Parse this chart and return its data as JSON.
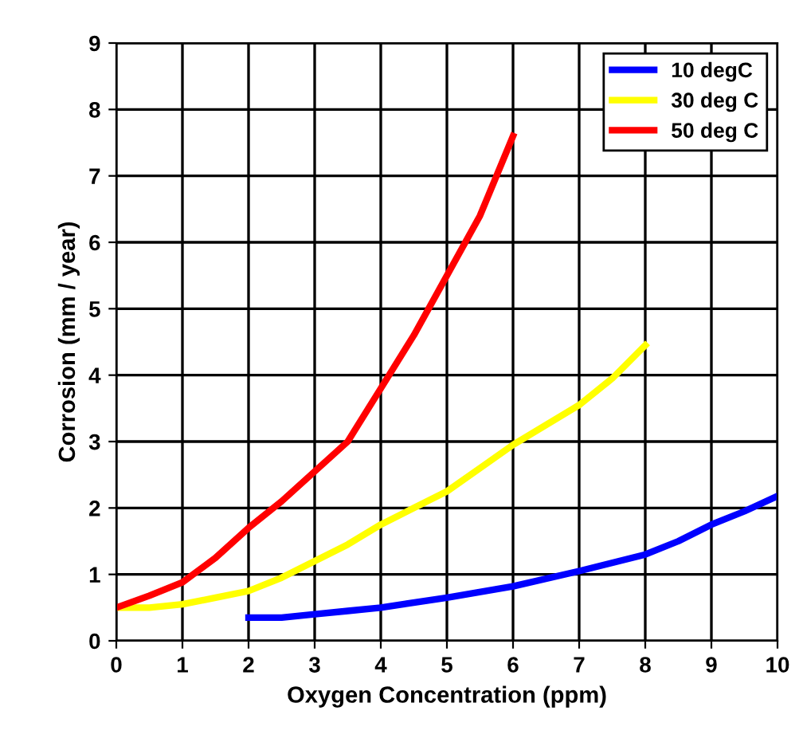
{
  "chart_data": {
    "type": "line",
    "xlabel": "Oxygen Concentration (ppm)",
    "ylabel": "Corrosion (mm / year)",
    "xlim": [
      0,
      10
    ],
    "ylim": [
      0,
      9
    ],
    "xticks": [
      0,
      1,
      2,
      3,
      4,
      5,
      6,
      7,
      8,
      9,
      10
    ],
    "yticks": [
      0,
      1,
      2,
      3,
      4,
      5,
      6,
      7,
      8,
      9
    ],
    "grid": true,
    "legend": "top right",
    "marker": "none",
    "line_style": "solid",
    "series": [
      {
        "name": "10 degC",
        "color": "#0000ff",
        "x": [
          2,
          2.5,
          3,
          3.5,
          4,
          5,
          6,
          7,
          8,
          8.5,
          9,
          9.5,
          10
        ],
        "values": [
          0.35,
          0.35,
          0.4,
          0.45,
          0.5,
          0.65,
          0.82,
          1.05,
          1.3,
          1.5,
          1.75,
          1.95,
          2.18
        ]
      },
      {
        "name": "30 deg C",
        "color": "#ffff00",
        "x": [
          0,
          0.5,
          1,
          1.5,
          2,
          2.5,
          3,
          3.5,
          4,
          4.5,
          5,
          5.5,
          6,
          6.5,
          7,
          7.5,
          8
        ],
        "values": [
          0.5,
          0.5,
          0.55,
          0.65,
          0.75,
          0.95,
          1.2,
          1.45,
          1.75,
          2.0,
          2.25,
          2.6,
          2.95,
          3.25,
          3.55,
          3.95,
          4.45
        ]
      },
      {
        "name": "50 deg C",
        "color": "#ff0000",
        "x": [
          0,
          0.5,
          1,
          1.5,
          2,
          2.5,
          3,
          3.5,
          4,
          4.5,
          5,
          5.5,
          6
        ],
        "values": [
          0.5,
          0.68,
          0.88,
          1.25,
          1.7,
          2.1,
          2.55,
          3.0,
          3.8,
          4.6,
          5.5,
          6.4,
          7.6
        ]
      }
    ]
  }
}
